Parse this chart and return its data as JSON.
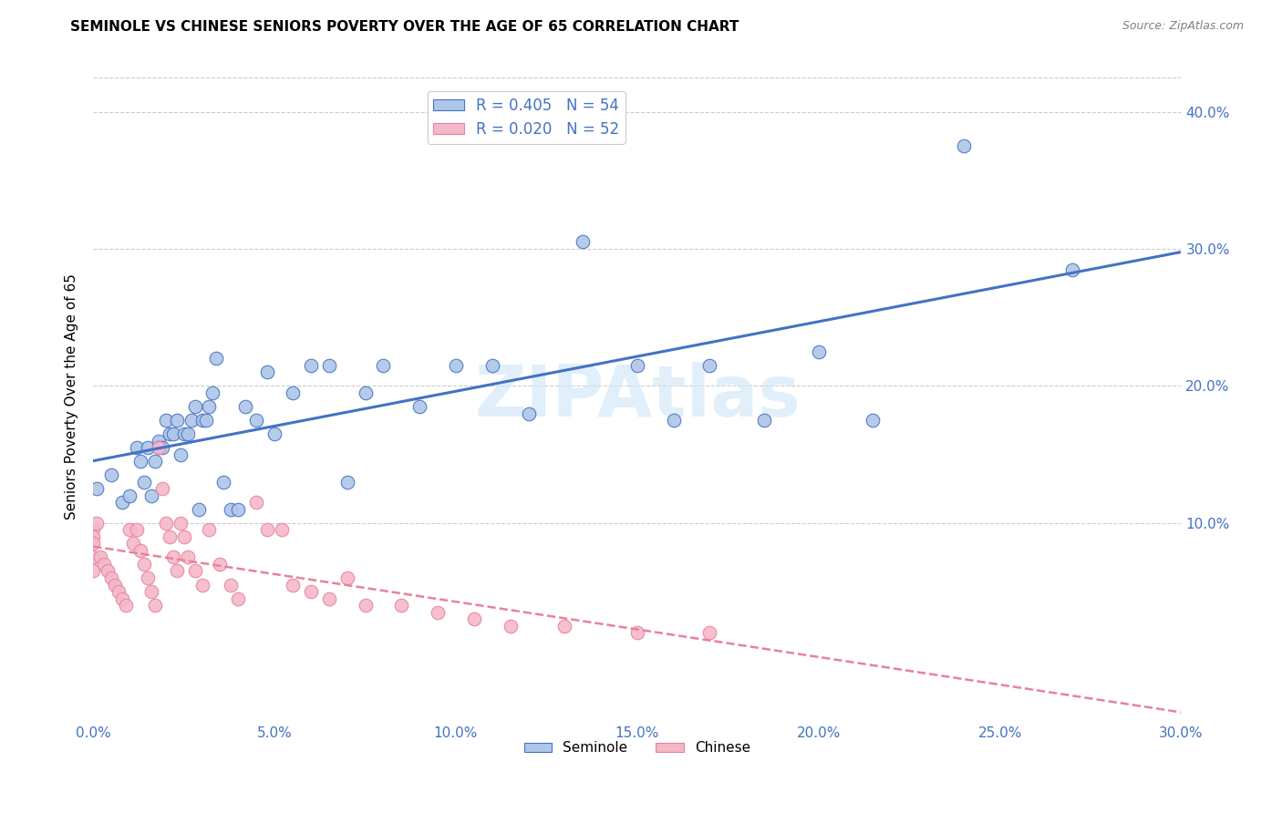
{
  "title": "SEMINOLE VS CHINESE SENIORS POVERTY OVER THE AGE OF 65 CORRELATION CHART",
  "source": "Source: ZipAtlas.com",
  "ylabel": "Seniors Poverty Over the Age of 65",
  "xlim": [
    0.0,
    0.3
  ],
  "ylim": [
    -0.045,
    0.43
  ],
  "xticks": [
    0.0,
    0.05,
    0.1,
    0.15,
    0.2,
    0.25,
    0.3
  ],
  "yticks_right": [
    0.1,
    0.2,
    0.3,
    0.4
  ],
  "seminole_color": "#aec6e8",
  "chinese_color": "#f4b8c8",
  "seminole_line_color": "#4472c4",
  "chinese_line_color": "#e8829a",
  "legend_R_color": "#4472c4",
  "seminole_R": 0.405,
  "seminole_N": 54,
  "chinese_R": 0.02,
  "chinese_N": 52,
  "watermark": "ZIPAtlas",
  "seminole_x": [
    0.001,
    0.005,
    0.008,
    0.01,
    0.012,
    0.013,
    0.014,
    0.015,
    0.016,
    0.017,
    0.018,
    0.018,
    0.019,
    0.02,
    0.021,
    0.022,
    0.023,
    0.024,
    0.025,
    0.026,
    0.027,
    0.028,
    0.029,
    0.03,
    0.031,
    0.032,
    0.033,
    0.034,
    0.036,
    0.038,
    0.04,
    0.042,
    0.045,
    0.048,
    0.05,
    0.055,
    0.06,
    0.065,
    0.07,
    0.075,
    0.08,
    0.09,
    0.1,
    0.11,
    0.12,
    0.135,
    0.15,
    0.16,
    0.17,
    0.185,
    0.2,
    0.215,
    0.24,
    0.27
  ],
  "seminole_y": [
    0.125,
    0.135,
    0.115,
    0.12,
    0.155,
    0.145,
    0.13,
    0.155,
    0.12,
    0.145,
    0.16,
    0.155,
    0.155,
    0.175,
    0.165,
    0.165,
    0.175,
    0.15,
    0.165,
    0.165,
    0.175,
    0.185,
    0.11,
    0.175,
    0.175,
    0.185,
    0.195,
    0.22,
    0.13,
    0.11,
    0.11,
    0.185,
    0.175,
    0.21,
    0.165,
    0.195,
    0.215,
    0.215,
    0.13,
    0.195,
    0.215,
    0.185,
    0.215,
    0.215,
    0.18,
    0.305,
    0.215,
    0.175,
    0.215,
    0.175,
    0.225,
    0.175,
    0.375,
    0.285
  ],
  "chinese_x": [
    0.0,
    0.0,
    0.0,
    0.0,
    0.0,
    0.001,
    0.002,
    0.003,
    0.004,
    0.005,
    0.006,
    0.007,
    0.008,
    0.009,
    0.01,
    0.011,
    0.012,
    0.013,
    0.014,
    0.015,
    0.016,
    0.017,
    0.018,
    0.019,
    0.02,
    0.021,
    0.022,
    0.023,
    0.024,
    0.025,
    0.026,
    0.028,
    0.03,
    0.032,
    0.035,
    0.038,
    0.04,
    0.045,
    0.048,
    0.052,
    0.055,
    0.06,
    0.065,
    0.07,
    0.075,
    0.085,
    0.095,
    0.105,
    0.115,
    0.13,
    0.15,
    0.17
  ],
  "chinese_y": [
    0.095,
    0.09,
    0.085,
    0.075,
    0.065,
    0.1,
    0.075,
    0.07,
    0.065,
    0.06,
    0.055,
    0.05,
    0.045,
    0.04,
    0.095,
    0.085,
    0.095,
    0.08,
    0.07,
    0.06,
    0.05,
    0.04,
    0.155,
    0.125,
    0.1,
    0.09,
    0.075,
    0.065,
    0.1,
    0.09,
    0.075,
    0.065,
    0.055,
    0.095,
    0.07,
    0.055,
    0.045,
    0.115,
    0.095,
    0.095,
    0.055,
    0.05,
    0.045,
    0.06,
    0.04,
    0.04,
    0.035,
    0.03,
    0.025,
    0.025,
    0.02,
    0.02
  ]
}
